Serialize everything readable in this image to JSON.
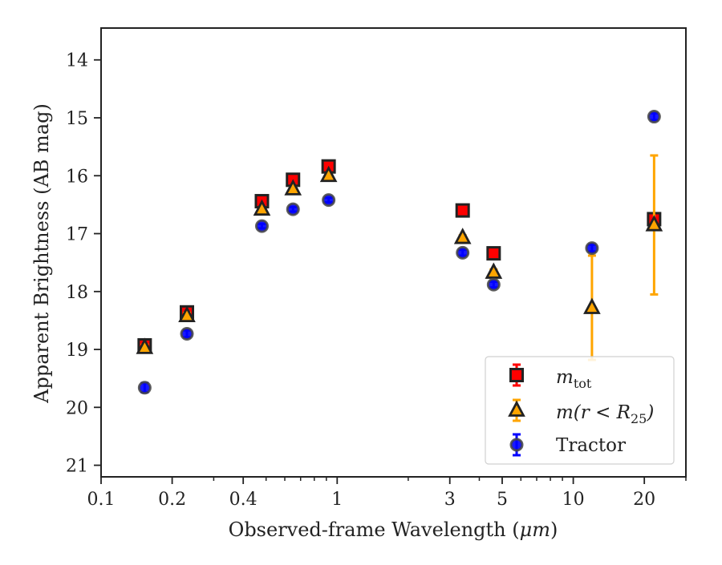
{
  "chart_data": {
    "type": "scatter",
    "xlabel_prefix": "Observed-frame Wavelength (",
    "xlabel_unit": "μm",
    "xlabel_suffix": ")",
    "ylabel": "Apparent Brightness (AB mag)",
    "x_scale": "log",
    "xlim": [
      0.1,
      30
    ],
    "ylim": [
      21.2,
      13.45
    ],
    "y_inverted": true,
    "grid": false,
    "legend_position": "lower-right",
    "xticks": [
      {
        "value": 0.1,
        "label": "0.1"
      },
      {
        "value": 0.2,
        "label": "0.2"
      },
      {
        "value": 0.4,
        "label": "0.4"
      },
      {
        "value": 1,
        "label": "1"
      },
      {
        "value": 3,
        "label": "3"
      },
      {
        "value": 5,
        "label": "5"
      },
      {
        "value": 10,
        "label": "10"
      },
      {
        "value": 20,
        "label": "20"
      }
    ],
    "yticks": [
      {
        "value": 14,
        "label": "14"
      },
      {
        "value": 15,
        "label": "15"
      },
      {
        "value": 16,
        "label": "16"
      },
      {
        "value": 17,
        "label": "17"
      },
      {
        "value": 18,
        "label": "18"
      },
      {
        "value": 19,
        "label": "19"
      },
      {
        "value": 20,
        "label": "20"
      },
      {
        "value": 21,
        "label": "21"
      }
    ],
    "series": [
      {
        "key": "mtot",
        "name_main": "m",
        "name_sub": "tot",
        "marker": "square",
        "color": "#ff0000",
        "edgecolor": "#222222",
        "errcolor": "#ff0000",
        "points": [
          {
            "x": 0.153,
            "y": 18.93,
            "err": 0.05
          },
          {
            "x": 0.231,
            "y": 18.36,
            "err": 0.05
          },
          {
            "x": 0.48,
            "y": 16.44,
            "err": 0.03
          },
          {
            "x": 0.65,
            "y": 16.07,
            "err": 0.03
          },
          {
            "x": 0.92,
            "y": 15.84,
            "err": 0.03
          },
          {
            "x": 3.4,
            "y": 16.6,
            "err": 0.03
          },
          {
            "x": 4.6,
            "y": 17.34,
            "err": 0.04
          },
          {
            "x": 22.0,
            "y": 16.75,
            "err": 0.06
          }
        ]
      },
      {
        "key": "mr25",
        "name_text": "m(r < R",
        "name_sub": "25",
        "name_close": ")",
        "marker": "triangle",
        "color": "#ffa500",
        "edgecolor": "#222222",
        "errcolor": "#ffa500",
        "points": [
          {
            "x": 0.153,
            "y": 18.97,
            "err": 0.05
          },
          {
            "x": 0.231,
            "y": 18.42,
            "err": 0.05
          },
          {
            "x": 0.48,
            "y": 16.58,
            "err": 0.03
          },
          {
            "x": 0.65,
            "y": 16.23,
            "err": 0.03
          },
          {
            "x": 0.92,
            "y": 16.0,
            "err": 0.03
          },
          {
            "x": 3.4,
            "y": 17.07,
            "err": 0.04
          },
          {
            "x": 4.6,
            "y": 17.67,
            "err": 0.05
          },
          {
            "x": 12.0,
            "y": 18.28,
            "err": 0.9
          },
          {
            "x": 22.0,
            "y": 16.85,
            "err": 1.2
          }
        ]
      },
      {
        "key": "tractor",
        "name": "Tractor",
        "marker": "circle",
        "color": "#0000ff",
        "edgecolor": "#444444",
        "errcolor": "#0000ff",
        "points": [
          {
            "x": 0.153,
            "y": 19.66,
            "err": 0.08
          },
          {
            "x": 0.231,
            "y": 18.73,
            "err": 0.06
          },
          {
            "x": 0.48,
            "y": 16.87,
            "err": 0.04
          },
          {
            "x": 0.65,
            "y": 16.58,
            "err": 0.04
          },
          {
            "x": 0.92,
            "y": 16.42,
            "err": 0.04
          },
          {
            "x": 3.4,
            "y": 17.33,
            "err": 0.05
          },
          {
            "x": 4.6,
            "y": 17.88,
            "err": 0.05
          },
          {
            "x": 12.0,
            "y": 17.25,
            "err": 0.06
          },
          {
            "x": 22.0,
            "y": 14.98,
            "err": 0.06
          }
        ]
      }
    ]
  }
}
